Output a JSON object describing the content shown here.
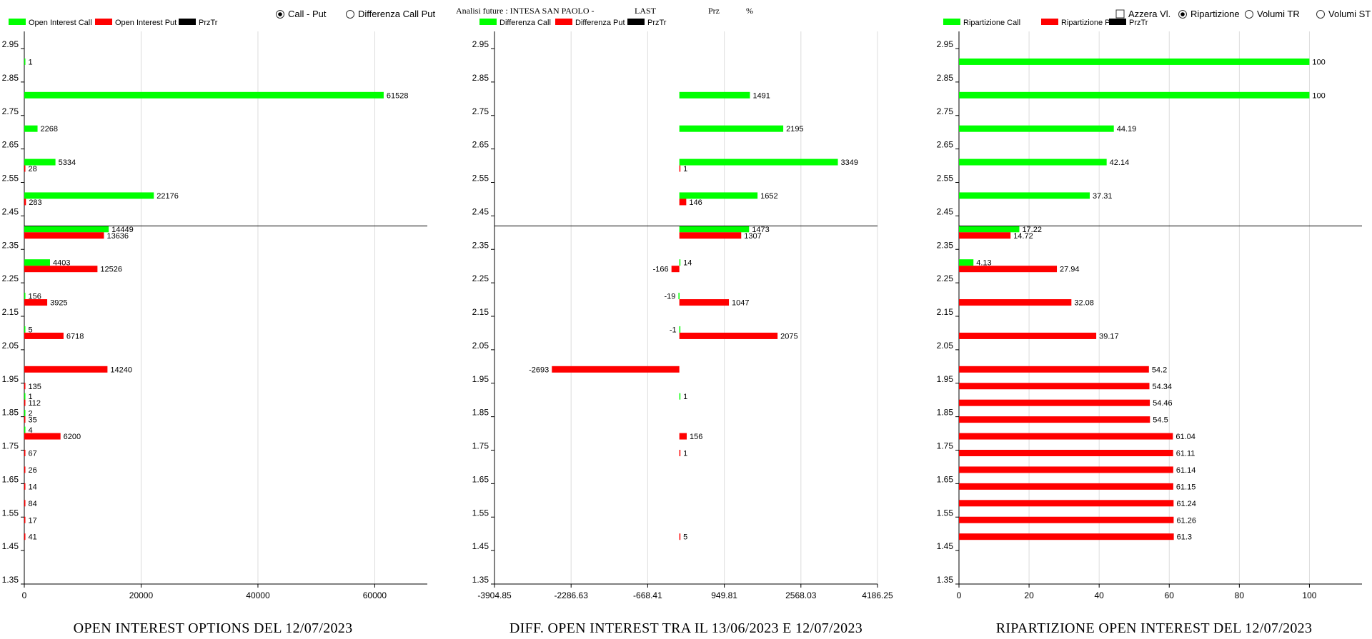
{
  "header": {
    "analisi": "Analisi future : INTESA SAN PAOLO -",
    "last": "LAST",
    "prz": "Prz",
    "pct": "%"
  },
  "controls": {
    "call_put": "Call - Put",
    "diff_call_put": "Differenza Call Put",
    "azzera": "Azzera Vl.",
    "ripartizione": "Ripartizione",
    "volumi_tr": "Volumi TR",
    "volumi_st": "Volumi ST"
  },
  "colors": {
    "call": "#00ff00",
    "put": "#ff0000",
    "price": "#000000",
    "grid": "#dcdcdc"
  },
  "chart_data": [
    {
      "type": "bar",
      "orientation": "horizontal",
      "title": "OPEN INTEREST OPTIONS DEL 12/07/2023",
      "legend": [
        "Open Interest Call",
        "Open Interest Put",
        "PrzTr"
      ],
      "y_ticks": [
        "2.95",
        "2.85",
        "2.75",
        "2.65",
        "2.55",
        "2.45",
        "2.35",
        "2.25",
        "2.15",
        "2.05",
        "1.95",
        "1.85",
        "1.75",
        "1.65",
        "1.55",
        "1.45",
        "1.35"
      ],
      "x_ticks": [
        "0",
        "20000",
        "40000",
        "60000"
      ],
      "xlim": [
        0,
        69000
      ],
      "ylim": [
        1.35,
        2.95
      ],
      "price_line": 2.42,
      "series": [
        {
          "name": "Open Interest Call",
          "color": "#00ff00",
          "points": [
            {
              "y": 2.9,
              "value": 1
            },
            {
              "y": 2.8,
              "value": 61528
            },
            {
              "y": 2.7,
              "value": 2268
            },
            {
              "y": 2.6,
              "value": 5334
            },
            {
              "y": 2.5,
              "value": 22176
            },
            {
              "y": 2.4,
              "value": 14449
            },
            {
              "y": 2.3,
              "value": 4403
            },
            {
              "y": 2.2,
              "value": 156
            },
            {
              "y": 2.1,
              "value": 5
            },
            {
              "y": 1.9,
              "value": 1
            },
            {
              "y": 1.85,
              "value": 2
            },
            {
              "y": 1.8,
              "value": 4
            }
          ]
        },
        {
          "name": "Open Interest Put",
          "color": "#ff0000",
          "points": [
            {
              "y": 2.6,
              "value": 28
            },
            {
              "y": 2.5,
              "value": 283
            },
            {
              "y": 2.4,
              "value": 13636
            },
            {
              "y": 2.3,
              "value": 12526
            },
            {
              "y": 2.2,
              "value": 3925
            },
            {
              "y": 2.1,
              "value": 6718
            },
            {
              "y": 2.0,
              "value": 14240
            },
            {
              "y": 1.95,
              "value": 135
            },
            {
              "y": 1.9,
              "value": 112
            },
            {
              "y": 1.85,
              "value": 35
            },
            {
              "y": 1.8,
              "value": 6200
            },
            {
              "y": 1.75,
              "value": 67
            },
            {
              "y": 1.7,
              "value": 26
            },
            {
              "y": 1.65,
              "value": 14
            },
            {
              "y": 1.6,
              "value": 84
            },
            {
              "y": 1.55,
              "value": 17
            },
            {
              "y": 1.5,
              "value": 41
            }
          ]
        }
      ]
    },
    {
      "type": "bar",
      "orientation": "horizontal",
      "title": "DIFF. OPEN INTEREST TRA IL 13/06/2023 E 12/07/2023",
      "legend": [
        "Differenza Call",
        "Differenza Put",
        "PrzTr"
      ],
      "y_ticks": [
        "2.95",
        "2.85",
        "2.75",
        "2.65",
        "2.55",
        "2.45",
        "2.35",
        "2.25",
        "2.15",
        "2.05",
        "1.95",
        "1.85",
        "1.75",
        "1.65",
        "1.55",
        "1.45",
        "1.35"
      ],
      "x_ticks": [
        "-3904.85",
        "-2286.63",
        "-668.41",
        "949.81",
        "2568.03",
        "4186.25"
      ],
      "xlim": [
        -3904.85,
        4186.25
      ],
      "ylim": [
        1.35,
        2.95
      ],
      "price_line": 2.42,
      "series": [
        {
          "name": "Differenza Call",
          "color": "#00ff00",
          "points": [
            {
              "y": 2.8,
              "value": 1491
            },
            {
              "y": 2.7,
              "value": 2195
            },
            {
              "y": 2.6,
              "value": 3349
            },
            {
              "y": 2.5,
              "value": 1652
            },
            {
              "y": 2.4,
              "value": 1473
            },
            {
              "y": 2.3,
              "value": 14
            },
            {
              "y": 2.2,
              "value": -19
            },
            {
              "y": 2.1,
              "value": -1
            },
            {
              "y": 1.9,
              "value": 1
            }
          ]
        },
        {
          "name": "Differenza Put",
          "color": "#ff0000",
          "points": [
            {
              "y": 2.6,
              "value": 1
            },
            {
              "y": 2.5,
              "value": 146
            },
            {
              "y": 2.4,
              "value": 1307
            },
            {
              "y": 2.3,
              "value": -166
            },
            {
              "y": 2.2,
              "value": 1047
            },
            {
              "y": 2.1,
              "value": 2075
            },
            {
              "y": 2.0,
              "value": -2693
            },
            {
              "y": 1.8,
              "value": 156
            },
            {
              "y": 1.75,
              "value": 1
            },
            {
              "y": 1.5,
              "value": 5
            }
          ]
        }
      ]
    },
    {
      "type": "bar",
      "orientation": "horizontal",
      "title": "RIPARTIZIONE OPEN INTEREST DEL 12/07/2023",
      "legend": [
        "Ripartizione Call",
        "Ripartizione Put",
        "PrzTr"
      ],
      "y_ticks": [
        "2.95",
        "2.85",
        "2.75",
        "2.65",
        "2.55",
        "2.45",
        "2.35",
        "2.25",
        "2.15",
        "2.05",
        "1.95",
        "1.85",
        "1.75",
        "1.65",
        "1.55",
        "1.45",
        "1.35"
      ],
      "x_ticks": [
        "0",
        "20",
        "40",
        "60",
        "80",
        "100"
      ],
      "xlim": [
        0,
        115
      ],
      "ylim": [
        1.35,
        2.95
      ],
      "price_line": 2.42,
      "series": [
        {
          "name": "Ripartizione Call",
          "color": "#00ff00",
          "points": [
            {
              "y": 2.9,
              "value": 100
            },
            {
              "y": 2.8,
              "value": 100
            },
            {
              "y": 2.7,
              "value": 44.19
            },
            {
              "y": 2.6,
              "value": 42.14
            },
            {
              "y": 2.5,
              "value": 37.31
            },
            {
              "y": 2.4,
              "value": 17.22
            },
            {
              "y": 2.3,
              "value": 4.13
            }
          ]
        },
        {
          "name": "Ripartizione Put",
          "color": "#ff0000",
          "points": [
            {
              "y": 2.4,
              "value": 14.72
            },
            {
              "y": 2.3,
              "value": 27.94
            },
            {
              "y": 2.2,
              "value": 32.08
            },
            {
              "y": 2.1,
              "value": 39.17
            },
            {
              "y": 2.0,
              "value": 54.2
            },
            {
              "y": 1.95,
              "value": 54.34
            },
            {
              "y": 1.9,
              "value": 54.46
            },
            {
              "y": 1.85,
              "value": 54.5
            },
            {
              "y": 1.8,
              "value": 61.04
            },
            {
              "y": 1.75,
              "value": 61.11
            },
            {
              "y": 1.7,
              "value": 61.14
            },
            {
              "y": 1.65,
              "value": 61.15
            },
            {
              "y": 1.6,
              "value": 61.24
            },
            {
              "y": 1.55,
              "value": 61.26
            },
            {
              "y": 1.5,
              "value": 61.3
            }
          ]
        }
      ]
    }
  ]
}
